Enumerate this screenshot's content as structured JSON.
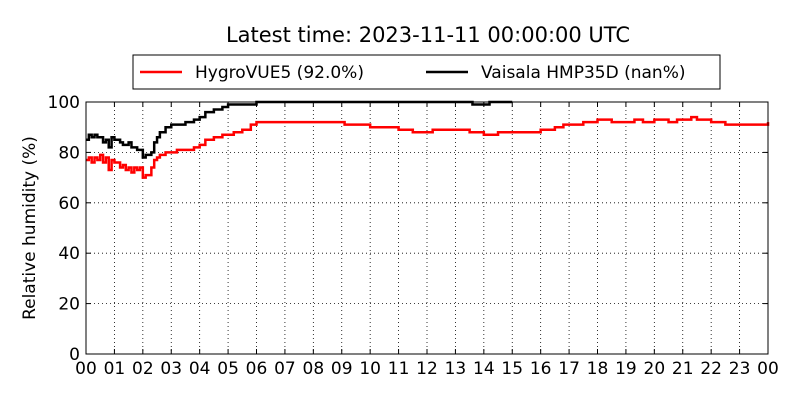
{
  "chart_data": {
    "type": "line",
    "title": "Latest time: 2023-11-11 00:00:00 UTC",
    "xlabel": "",
    "ylabel": "Relative humidity (%)",
    "xlim": [
      0,
      24
    ],
    "ylim": [
      0,
      100
    ],
    "grid": true,
    "legend_position": "top",
    "x_ticks": [
      "00",
      "01",
      "02",
      "03",
      "04",
      "05",
      "06",
      "07",
      "08",
      "09",
      "10",
      "11",
      "12",
      "13",
      "14",
      "15",
      "16",
      "17",
      "18",
      "19",
      "20",
      "21",
      "22",
      "23",
      "00"
    ],
    "y_ticks": [
      0,
      20,
      40,
      60,
      80,
      100
    ],
    "series": [
      {
        "name": "HygroVUE5 (92.0%)",
        "color": "#ff0000",
        "x": [
          0,
          0.1,
          0.2,
          0.3,
          0.4,
          0.5,
          0.6,
          0.7,
          0.8,
          0.9,
          1.0,
          1.1,
          1.2,
          1.3,
          1.4,
          1.5,
          1.6,
          1.7,
          1.8,
          1.9,
          2.0,
          2.1,
          2.2,
          2.3,
          2.4,
          2.5,
          2.6,
          2.8,
          3.0,
          3.2,
          3.5,
          3.8,
          4.0,
          4.2,
          4.5,
          4.8,
          5.0,
          5.2,
          5.5,
          5.8,
          6.0,
          6.5,
          7.0,
          8.0,
          9.0,
          9.1,
          9.5,
          10.0,
          10.5,
          11.0,
          11.2,
          11.5,
          12.0,
          12.2,
          12.5,
          13.0,
          13.3,
          13.5,
          14.0,
          14.5,
          15.0,
          15.5,
          16.0,
          16.5,
          16.8,
          17.0,
          17.5,
          18.0,
          18.5,
          19.0,
          19.3,
          19.6,
          20.0,
          20.5,
          20.8,
          21.0,
          21.3,
          21.5,
          22.0,
          22.5,
          23.0,
          23.5,
          24.0
        ],
        "y": [
          77,
          78,
          76,
          78,
          77,
          79,
          76,
          78,
          73,
          77,
          76,
          76,
          74,
          75,
          73,
          74,
          72,
          74,
          73,
          74,
          70,
          71,
          71,
          74,
          77,
          78,
          79,
          80,
          80,
          81,
          81,
          82,
          83,
          85,
          86,
          87,
          87,
          88,
          89,
          91,
          92,
          92,
          92,
          92,
          92,
          91,
          91,
          90,
          90,
          89,
          89,
          88,
          88,
          89,
          89,
          89,
          89,
          88,
          87,
          88,
          88,
          88,
          89,
          90,
          91,
          91,
          92,
          93,
          92,
          92,
          93,
          92,
          93,
          92,
          93,
          93,
          94,
          93,
          92,
          91,
          91,
          91,
          92
        ]
      },
      {
        "name": "Vaisala HMP35D (nan%)",
        "color": "#000000",
        "x": [
          0,
          0.1,
          0.2,
          0.3,
          0.4,
          0.5,
          0.6,
          0.7,
          0.8,
          0.9,
          1.0,
          1.1,
          1.2,
          1.3,
          1.4,
          1.5,
          1.6,
          1.7,
          1.8,
          1.9,
          2.0,
          2.1,
          2.2,
          2.3,
          2.4,
          2.5,
          2.6,
          2.8,
          3.0,
          3.2,
          3.5,
          3.8,
          4.0,
          4.2,
          4.5,
          4.8,
          5.0,
          5.2,
          5.5,
          6.0,
          6.5,
          13.0,
          13.3,
          13.6,
          13.8,
          14.0,
          14.2,
          14.4,
          14.6,
          15.0
        ],
        "y": [
          85,
          87,
          86,
          87,
          86,
          86,
          84,
          85,
          82,
          86,
          85,
          85,
          84,
          83,
          83,
          84,
          82,
          82,
          81,
          81,
          78,
          79,
          79,
          80,
          84,
          86,
          88,
          90,
          91,
          91,
          92,
          93,
          94,
          96,
          97,
          98,
          99,
          99,
          99,
          100,
          100,
          100,
          100,
          99,
          99,
          99,
          100,
          100,
          100,
          100
        ]
      }
    ]
  }
}
